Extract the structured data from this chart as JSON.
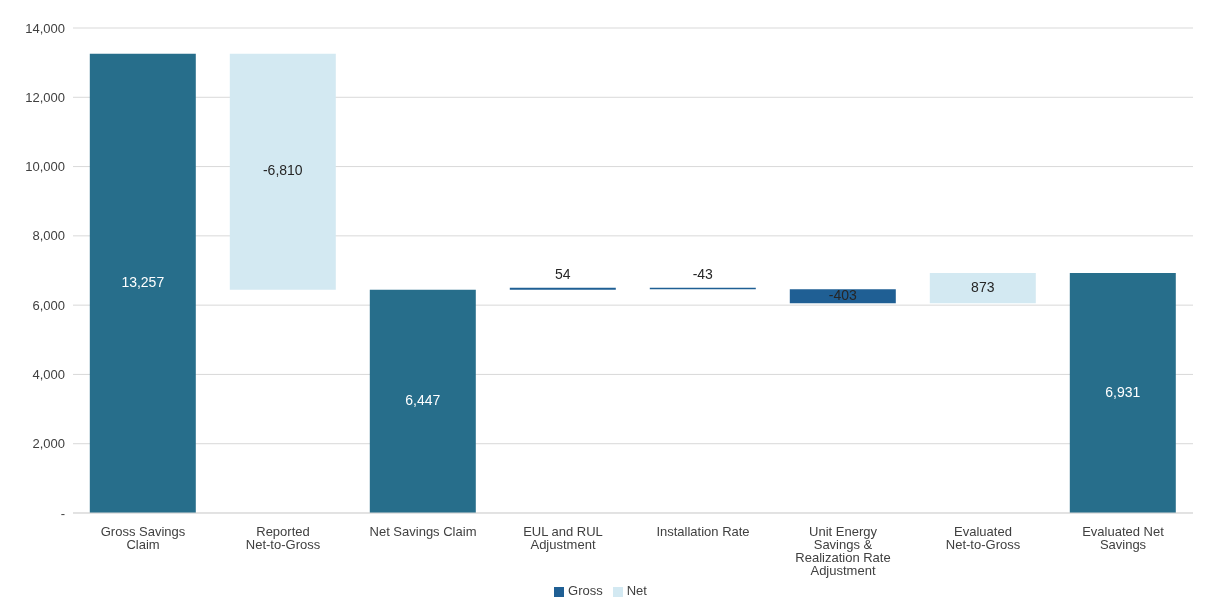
{
  "chart_data": {
    "type": "bar",
    "categories": [
      "Gross Savings Claim",
      "Reported Net-to-Gross",
      "Net Savings Claim",
      "EUL and RUL Adjustment",
      "Installation Rate",
      "Unit Energy Savings & Realization Rate Adjustment",
      "Evaluated Net-to-Gross",
      "Evaluated Net Savings"
    ],
    "series": [
      {
        "color": "#276e8b",
        "values": [
          13257,
          null,
          6447,
          null,
          null,
          null,
          null,
          6931
        ],
        "value_labels": [
          "13,257",
          null,
          "6,447",
          null,
          null,
          null,
          null,
          "6,931"
        ]
      },
      {
        "name": "Gross",
        "color": "#1f5f94",
        "values": [
          null,
          null,
          null,
          54,
          -43,
          -403,
          null,
          null
        ],
        "base": [
          null,
          null,
          null,
          6447,
          6501,
          6458,
          null,
          null
        ],
        "value_labels": [
          null,
          null,
          null,
          "54",
          "-43",
          "-403",
          null,
          null
        ]
      },
      {
        "name": "Net",
        "color": "#d3e9f2",
        "values": [
          null,
          -6810,
          null,
          null,
          null,
          null,
          873,
          null
        ],
        "base": [
          null,
          13257,
          null,
          null,
          null,
          null,
          6055,
          null
        ],
        "value_labels": [
          null,
          "-6,810",
          null,
          null,
          null,
          null,
          "873",
          null
        ]
      }
    ],
    "ylim": [
      0,
      14000
    ],
    "yticks": [
      {
        "value": 0,
        "label": "-"
      },
      {
        "value": 2000,
        "label": "2,000"
      },
      {
        "value": 4000,
        "label": "4,000"
      },
      {
        "value": 6000,
        "label": "6,000"
      },
      {
        "value": 8000,
        "label": "8,000"
      },
      {
        "value": 10000,
        "label": "10,000"
      },
      {
        "value": 12000,
        "label": "12,000"
      },
      {
        "value": 14000,
        "label": "14,000"
      }
    ],
    "grid": "y",
    "legend": "bottom"
  }
}
